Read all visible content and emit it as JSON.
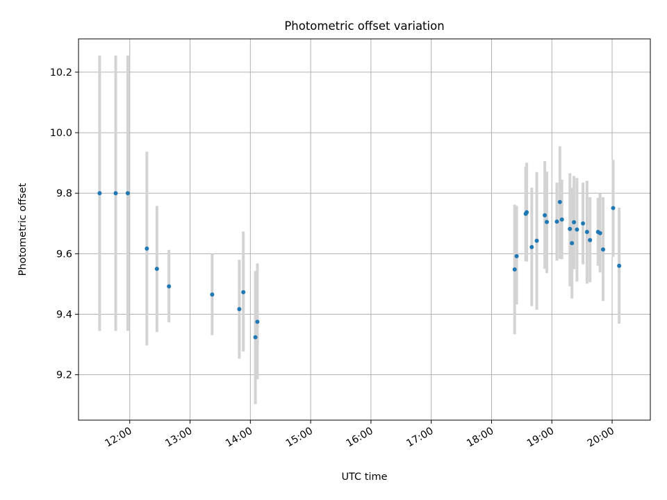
{
  "chart_data": {
    "type": "scatter",
    "title": "Photometric offset variation",
    "xlabel": "UTC time",
    "ylabel": "Photometric offset",
    "x_axis_type": "time",
    "xlim": [
      "11:09",
      "20:38"
    ],
    "ylim": [
      9.05,
      10.31
    ],
    "x_ticks": [
      "12:00",
      "13:00",
      "14:00",
      "15:00",
      "16:00",
      "17:00",
      "18:00",
      "19:00",
      "20:00"
    ],
    "y_ticks": [
      9.2,
      9.4,
      9.6,
      9.8,
      10.0,
      10.2
    ],
    "grid": true,
    "legend": "none",
    "colors": {
      "points": "#1f77b4",
      "errorbars": "#d3d3d3",
      "grid": "#b0b0b0"
    },
    "series": [
      {
        "points": [
          {
            "x": "11:30",
            "y": 9.8,
            "ylow": 9.345,
            "yhigh": 10.255
          },
          {
            "x": "11:46",
            "y": 9.8,
            "ylow": 9.345,
            "yhigh": 10.255
          },
          {
            "x": "11:58",
            "y": 9.8,
            "ylow": 9.345,
            "yhigh": 10.255
          },
          {
            "x": "12:17",
            "y": 9.617,
            "ylow": 9.297,
            "yhigh": 9.937
          },
          {
            "x": "12:27",
            "y": 9.55,
            "ylow": 9.341,
            "yhigh": 9.758
          },
          {
            "x": "12:39",
            "y": 9.492,
            "ylow": 9.373,
            "yhigh": 9.613
          },
          {
            "x": "13:22",
            "y": 9.465,
            "ylow": 9.331,
            "yhigh": 9.6
          },
          {
            "x": "13:49",
            "y": 9.417,
            "ylow": 9.253,
            "yhigh": 9.58
          },
          {
            "x": "13:53",
            "y": 9.473,
            "ylow": 9.277,
            "yhigh": 9.673
          },
          {
            "x": "14:05",
            "y": 9.324,
            "ylow": 9.103,
            "yhigh": 9.543
          },
          {
            "x": "14:07",
            "y": 9.375,
            "ylow": 9.185,
            "yhigh": 9.568
          },
          {
            "x": "18:23",
            "y": 9.548,
            "ylow": 9.334,
            "yhigh": 9.762
          },
          {
            "x": "18:25",
            "y": 9.592,
            "ylow": 9.432,
            "yhigh": 9.758
          },
          {
            "x": "18:34",
            "y": 9.732,
            "ylow": 9.575,
            "yhigh": 9.888
          },
          {
            "x": "18:35",
            "y": 9.737,
            "ylow": 9.574,
            "yhigh": 9.901
          },
          {
            "x": "18:40",
            "y": 9.622,
            "ylow": 9.427,
            "yhigh": 9.818
          },
          {
            "x": "18:45",
            "y": 9.643,
            "ylow": 9.415,
            "yhigh": 9.87
          },
          {
            "x": "18:53",
            "y": 9.727,
            "ylow": 9.55,
            "yhigh": 9.906
          },
          {
            "x": "18:55",
            "y": 9.705,
            "ylow": 9.536,
            "yhigh": 9.871
          },
          {
            "x": "19:05",
            "y": 9.706,
            "ylow": 9.577,
            "yhigh": 9.835
          },
          {
            "x": "19:08",
            "y": 9.771,
            "ylow": 9.583,
            "yhigh": 9.955
          },
          {
            "x": "19:10",
            "y": 9.713,
            "ylow": 9.582,
            "yhigh": 9.845
          },
          {
            "x": "19:18",
            "y": 9.682,
            "ylow": 9.492,
            "yhigh": 9.866
          },
          {
            "x": "19:20",
            "y": 9.635,
            "ylow": 9.452,
            "yhigh": 9.818
          },
          {
            "x": "19:22",
            "y": 9.704,
            "ylow": 9.549,
            "yhigh": 9.857
          },
          {
            "x": "19:25",
            "y": 9.68,
            "ylow": 9.508,
            "yhigh": 9.85
          },
          {
            "x": "19:31",
            "y": 9.7,
            "ylow": 9.565,
            "yhigh": 9.835
          },
          {
            "x": "19:35",
            "y": 9.672,
            "ylow": 9.501,
            "yhigh": 9.841
          },
          {
            "x": "19:38",
            "y": 9.645,
            "ylow": 9.506,
            "yhigh": 9.787
          },
          {
            "x": "19:46",
            "y": 9.672,
            "ylow": 9.56,
            "yhigh": 9.785
          },
          {
            "x": "19:48",
            "y": 9.668,
            "ylow": 9.538,
            "yhigh": 9.799
          },
          {
            "x": "19:51",
            "y": 9.614,
            "ylow": 9.444,
            "yhigh": 9.787
          },
          {
            "x": "20:01",
            "y": 9.751,
            "ylow": 9.59,
            "yhigh": 9.91
          },
          {
            "x": "20:07",
            "y": 9.56,
            "ylow": 9.369,
            "yhigh": 9.752
          }
        ]
      }
    ]
  }
}
